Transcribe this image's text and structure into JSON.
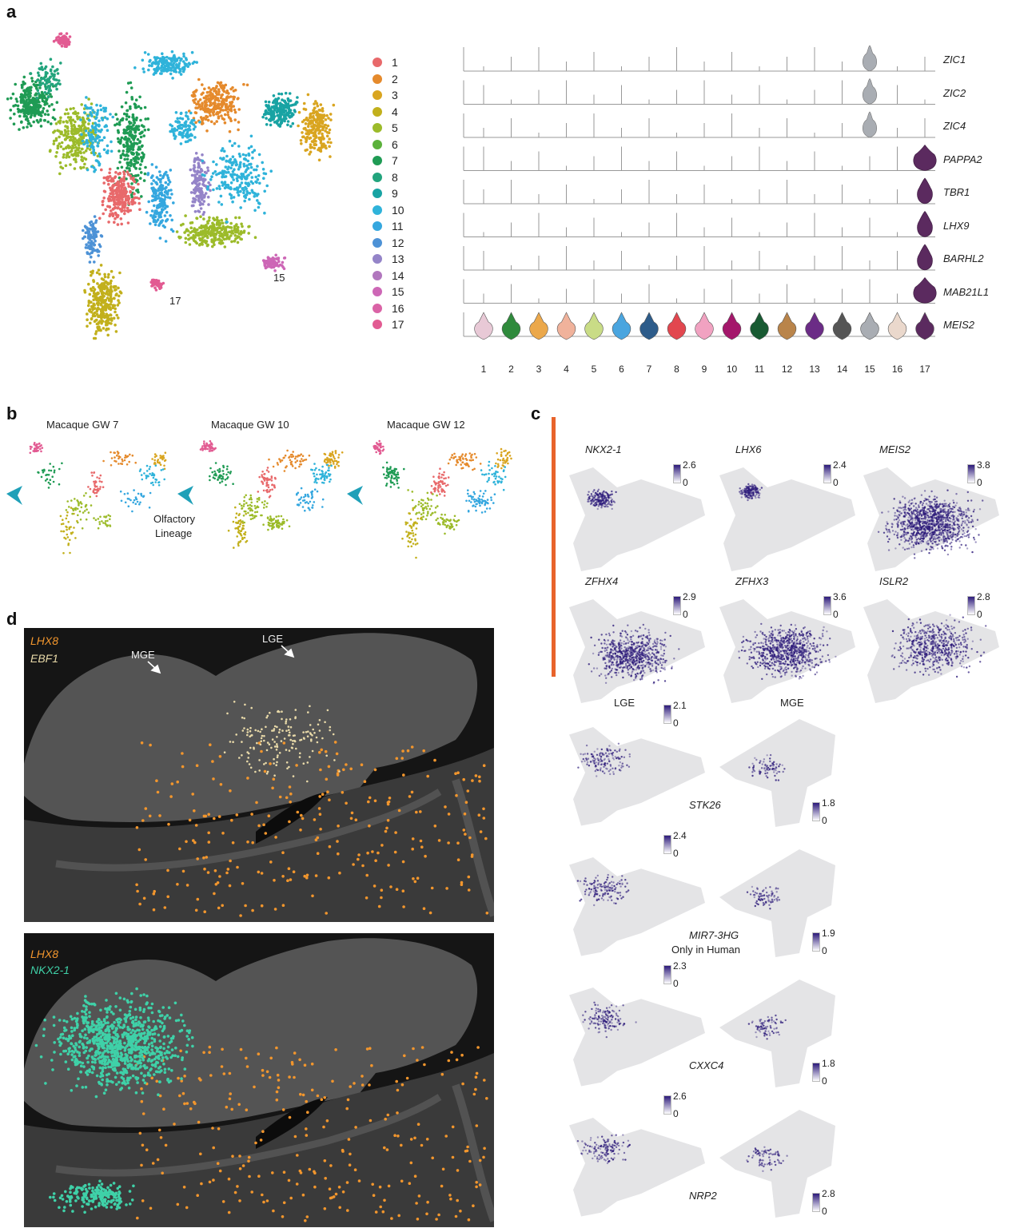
{
  "panels": {
    "a": "a",
    "b": "b",
    "c": "c",
    "d": "d"
  },
  "colors": {
    "clusters": [
      "#e8696b",
      "#e58a2c",
      "#d9a520",
      "#c2b01c",
      "#9cbb2a",
      "#5bb13b",
      "#1f9b54",
      "#22a47d",
      "#18a3a3",
      "#2fb3da",
      "#35a7df",
      "#4d92d6",
      "#9484c8",
      "#b177be",
      "#cd67b6",
      "#da63a6",
      "#e25b92"
    ],
    "violin_fills": [
      "#e8c9d6",
      "#2f8a3c",
      "#eba84b",
      "#f0b29b",
      "#c9dc86",
      "#4aa5df",
      "#2d5c8a",
      "#e2474f",
      "#f1a2c1",
      "#a4176b",
      "#185a32",
      "#b9844a",
      "#6b2c86",
      "#555555",
      "#a9adb3",
      "#ead8cc",
      "#5b2a5f"
    ],
    "expression_high": "#2c1a7a",
    "orange_stroke": "#e8632b",
    "lhx8": "#f2962d",
    "ebf1": "#e8d9a8",
    "nkx21": "#3fd1a8"
  },
  "panel_a": {
    "legend": [
      "1",
      "2",
      "3",
      "4",
      "5",
      "6",
      "7",
      "8",
      "9",
      "10",
      "11",
      "12",
      "13",
      "14",
      "15",
      "16",
      "17"
    ],
    "umap_labels": {
      "c15": "15",
      "c17": "17"
    },
    "genes": [
      "ZIC1",
      "ZIC2",
      "ZIC4",
      "PAPPA2",
      "TBR1",
      "LHX9",
      "BARHL2",
      "MAB21L1",
      "MEIS2"
    ],
    "x_categories": [
      "1",
      "2",
      "3",
      "4",
      "5",
      "6",
      "7",
      "8",
      "9",
      "10",
      "11",
      "12",
      "13",
      "14",
      "15",
      "16",
      "17"
    ]
  },
  "panel_b": {
    "titles": [
      "Macaque GW 7",
      "Macaque GW 10",
      "Macaque GW 12"
    ],
    "annotation": [
      "Olfactory",
      "Lineage"
    ]
  },
  "panel_c": {
    "feature_plots": [
      {
        "gene": "NKX2-1",
        "max": "2.6",
        "min": "0"
      },
      {
        "gene": "LHX6",
        "max": "2.4",
        "min": "0"
      },
      {
        "gene": "MEIS2",
        "max": "3.8",
        "min": "0"
      },
      {
        "gene": "ZFHX4",
        "max": "2.9",
        "min": "0"
      },
      {
        "gene": "ZFHX3",
        "max": "3.6",
        "min": "0"
      },
      {
        "gene": "ISLR2",
        "max": "2.8",
        "min": "0"
      }
    ],
    "comparison_headers": {
      "lge": "LGE",
      "mge": "MGE"
    },
    "comparison": [
      {
        "gene": "STK26",
        "lge_max": "2.1",
        "mge_max": "1.8",
        "min": "0",
        "note": ""
      },
      {
        "gene": "MIR7-3HG",
        "lge_max": "2.4",
        "mge_max": "1.9",
        "min": "0",
        "note": "Only in Human"
      },
      {
        "gene": "CXXC4",
        "lge_max": "2.3",
        "mge_max": "1.8",
        "min": "0",
        "note": ""
      },
      {
        "gene": "NRP2",
        "lge_max": "2.6",
        "mge_max": "2.8",
        "min": "0",
        "note": ""
      }
    ]
  },
  "panel_d": {
    "top": {
      "label1": "LHX8",
      "label2": "EBF1",
      "mge": "MGE",
      "lge": "LGE"
    },
    "bottom": {
      "label1": "LHX8",
      "label2": "NKX2-1"
    }
  }
}
